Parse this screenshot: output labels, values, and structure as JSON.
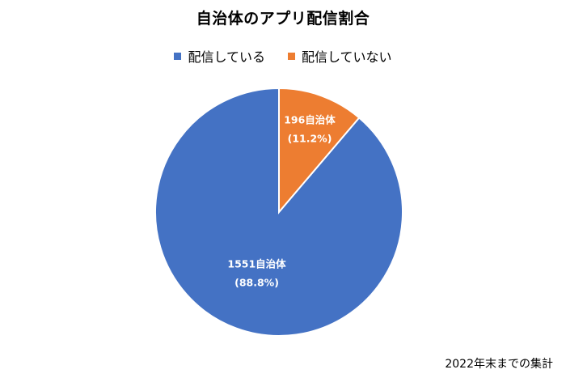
{
  "chart_data": {
    "type": "pie",
    "title": "自治体のアプリ配信割合",
    "categories": [
      "配信している",
      "配信していない"
    ],
    "values": [
      1551,
      196
    ],
    "colors": [
      "#4472C4",
      "#ED7D31"
    ],
    "data_labels": [
      {
        "count": "1551自治体",
        "percent": "(88.8%)"
      },
      {
        "count": "196自治体",
        "percent": "(11.2%)"
      }
    ],
    "legend_position": "top",
    "start_angle": "12 o'clock",
    "direction": "counterclockwise"
  },
  "legend": {
    "items": [
      {
        "label": "配信している",
        "color": "#4472C4"
      },
      {
        "label": "配信していない",
        "color": "#ED7D31"
      }
    ]
  },
  "footnote": "2022年末までの集計"
}
